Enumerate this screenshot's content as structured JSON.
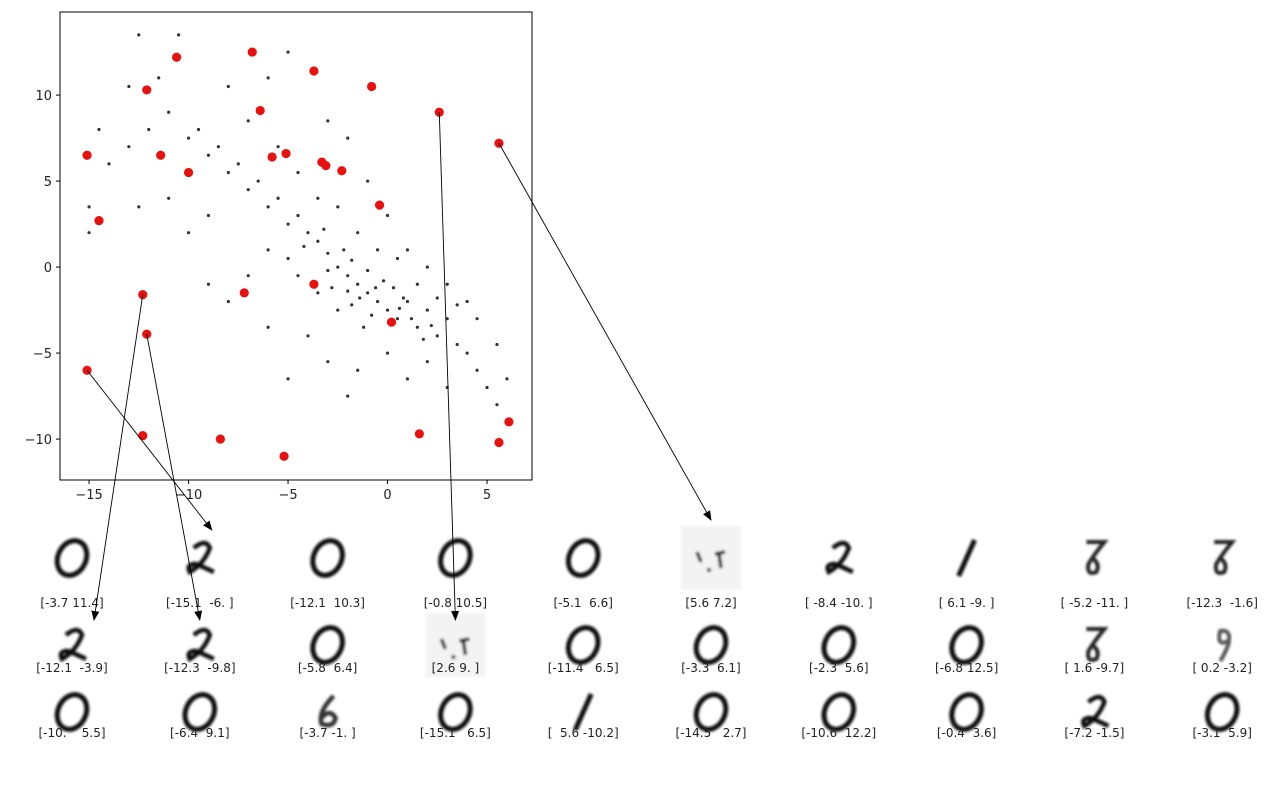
{
  "chart_data": {
    "type": "scatter",
    "xlim": [
      -16.46,
      7.26
    ],
    "ylim": [
      -12.38,
      14.83
    ],
    "xticks": [
      {
        "value": -15,
        "label": "−15"
      },
      {
        "value": -10,
        "label": "−10"
      },
      {
        "value": -5,
        "label": "−5"
      },
      0,
      5
    ],
    "yticks": [
      {
        "value": -10,
        "label": "−10"
      },
      {
        "value": -5,
        "label": "−5"
      },
      0,
      5,
      10
    ],
    "series": [
      {
        "color": "#000000",
        "x": [
          -1.0,
          -0.5,
          -1.5,
          -2.0,
          0.0,
          0.5,
          -2.5,
          -3.0,
          1.0,
          1.5,
          2.0,
          2.5,
          3.0,
          3.5,
          4.0,
          4.5,
          5.0,
          5.5,
          -3.5,
          -4.0,
          -4.5,
          -5.0,
          -5.5,
          -6.0,
          -6.5,
          -7.0,
          -7.5,
          -8.0,
          -8.5,
          -9.0,
          -9.5,
          -10.0,
          -11.0,
          -12.0,
          -13.0,
          -14.0,
          -12.5,
          -10.5,
          -5.0,
          -6.0,
          -8.0,
          -3.0,
          -2.0,
          -1.0,
          0.0,
          1.0,
          2.0,
          3.0,
          4.0,
          4.5,
          5.5,
          6.0,
          -1.2,
          -2.5,
          -3.5,
          -4.5,
          -5.0,
          -6.0,
          -7.0,
          -8.0,
          -9.0,
          -6.0,
          -4.0,
          -3.0,
          -1.5,
          0.0,
          1.0,
          2.0,
          3.0,
          -2.0,
          -5.0,
          -0.5,
          0.5,
          -1.5,
          -2.5,
          -3.5,
          -4.5,
          -5.5,
          -7.0,
          -9.0,
          -10.0,
          -11.0,
          -12.5,
          -15.0,
          -15.0,
          -13.0,
          -11.5,
          -14.5,
          1.5,
          0.8,
          -0.2,
          -1.8,
          -0.8,
          0.3,
          -2.8,
          2.5,
          3.5,
          1.8,
          -3.2,
          -4.2,
          -2.2,
          -1.0,
          -0.6,
          -1.4,
          0.6,
          -2.0,
          1.2,
          -1.8,
          -3.0,
          2.2
        ],
        "values": [
          -1.5,
          -2.0,
          -1.0,
          -0.5,
          -2.5,
          -3.0,
          0.0,
          0.8,
          -2.0,
          -3.5,
          -2.5,
          -4.0,
          -3.0,
          -4.5,
          -5.0,
          -6.0,
          -7.0,
          -8.0,
          1.5,
          2.0,
          3.0,
          2.5,
          4.0,
          3.5,
          5.0,
          4.5,
          6.0,
          5.5,
          7.0,
          6.5,
          8.0,
          7.5,
          9.0,
          8.0,
          7.0,
          6.0,
          13.5,
          13.5,
          12.5,
          11.0,
          10.5,
          8.5,
          7.5,
          5.0,
          3.0,
          1.0,
          0.0,
          -1.0,
          -2.0,
          -3.0,
          -4.5,
          -6.5,
          -3.5,
          -2.5,
          -1.5,
          -0.5,
          0.5,
          1.0,
          -0.5,
          -2.0,
          -1.0,
          -3.5,
          -4.0,
          -5.5,
          -6.0,
          -5.0,
          -6.5,
          -5.5,
          -7.0,
          -7.5,
          -6.5,
          1.0,
          0.5,
          2.0,
          3.5,
          4.0,
          5.5,
          7.0,
          8.5,
          3.0,
          2.0,
          4.0,
          3.5,
          3.5,
          2.0,
          10.5,
          11.0,
          8.0,
          -1.0,
          -1.8,
          -0.8,
          -2.2,
          -2.8,
          -1.2,
          -1.2,
          -1.8,
          -2.2,
          -4.2,
          2.2,
          1.2,
          1.0,
          -0.2,
          -1.2,
          -1.8,
          -2.4,
          -1.4,
          -3.0,
          0.4,
          -0.2,
          -3.4
        ]
      },
      {
        "color": "#e8110f",
        "x": [
          -3.7,
          -15.1,
          -12.1,
          -0.8,
          -5.1,
          5.6,
          -8.4,
          6.1,
          -5.2,
          -12.3,
          -12.1,
          -12.3,
          -5.8,
          2.6,
          -11.4,
          -3.3,
          -2.3,
          -6.8,
          1.6,
          0.2,
          -10.0,
          -6.4,
          -3.7,
          -15.1,
          5.6,
          -14.5,
          -10.6,
          -0.4,
          -7.2,
          -3.1
        ],
        "values": [
          11.4,
          -6.0,
          10.3,
          10.5,
          6.6,
          7.2,
          -10.0,
          -9.0,
          -11.0,
          -1.6,
          -3.9,
          -9.8,
          6.4,
          9.0,
          6.5,
          6.1,
          5.6,
          12.5,
          -9.7,
          -3.2,
          5.5,
          9.1,
          -1.0,
          6.5,
          -10.2,
          2.7,
          12.2,
          3.6,
          -1.5,
          5.9
        ],
        "value_labels": [
          "[-3.7 11.4]",
          "[-15.1  -6. ]",
          "[-12.1  10.3]",
          "[-0.8 10.5]",
          "[-5.1  6.6]",
          "[5.6 7.2]",
          "[ -8.4 -10. ]",
          "[ 6.1 -9. ]",
          "[ -5.2 -11. ]",
          "[-12.3  -1.6]",
          "[-12.1  -3.9]",
          "[-12.3  -9.8]",
          "[-5.8  6.4]",
          "[2.6 9. ]",
          "[-11.4   6.5]",
          "[-3.3  6.1]",
          "[-2.3  5.6]",
          "[-6.8 12.5]",
          "[ 1.6 -9.7]",
          "[ 0.2 -3.2]",
          "[-10.    5.5]",
          "[-6.4  9.1]",
          "[-3.7 -1. ]",
          "[-15.1   6.5]",
          "[  5.6 -10.2]",
          "[-14.5   2.7]",
          "[-10.6  12.2]",
          "[-0.4  3.6]",
          "[-7.2 -1.5]",
          "[-3.1  5.9]"
        ]
      }
    ]
  }
}
